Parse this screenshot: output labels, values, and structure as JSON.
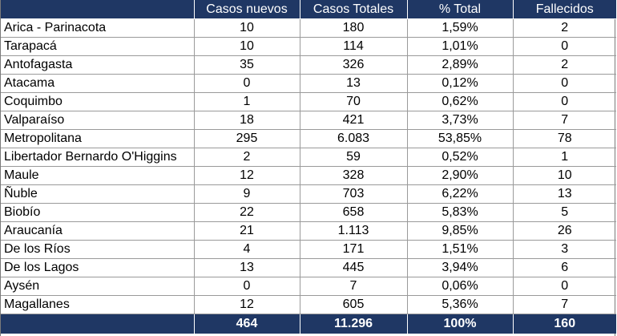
{
  "table": {
    "headers": [
      "",
      "Casos nuevos",
      "Casos Totales",
      "% Total",
      "Fallecidos"
    ],
    "rows": [
      [
        "Arica - Parinacota",
        "10",
        "180",
        "1,59%",
        "2"
      ],
      [
        "Tarapacá",
        "10",
        "114",
        "1,01%",
        "0"
      ],
      [
        "Antofagasta",
        "35",
        "326",
        "2,89%",
        "2"
      ],
      [
        "Atacama",
        "0",
        "13",
        "0,12%",
        "0"
      ],
      [
        "Coquimbo",
        "1",
        "70",
        "0,62%",
        "0"
      ],
      [
        "Valparaíso",
        "18",
        "421",
        "3,73%",
        "7"
      ],
      [
        "Metropolitana",
        "295",
        "6.083",
        "53,85%",
        "78"
      ],
      [
        "Libertador Bernardo O'Higgins",
        "2",
        "59",
        "0,52%",
        "1"
      ],
      [
        "Maule",
        "12",
        "328",
        "2,90%",
        "10"
      ],
      [
        "Ñuble",
        "9",
        "703",
        "6,22%",
        "13"
      ],
      [
        "Biobío",
        "22",
        "658",
        "5,83%",
        "5"
      ],
      [
        "Araucanía",
        "21",
        "1.113",
        "9,85%",
        "26"
      ],
      [
        "De los Ríos",
        "4",
        "171",
        "1,51%",
        "3"
      ],
      [
        "De los Lagos",
        "13",
        "445",
        "3,94%",
        "6"
      ],
      [
        "Aysén",
        "0",
        "7",
        "0,06%",
        "0"
      ],
      [
        "Magallanes",
        "12",
        "605",
        "5,36%",
        "7"
      ]
    ],
    "totals": [
      "",
      "464",
      "11.296",
      "100%",
      "160"
    ]
  },
  "colors": {
    "header_bg": "#1f3764",
    "header_text": "#ffffff",
    "grid_line": "#9a9a9a"
  }
}
